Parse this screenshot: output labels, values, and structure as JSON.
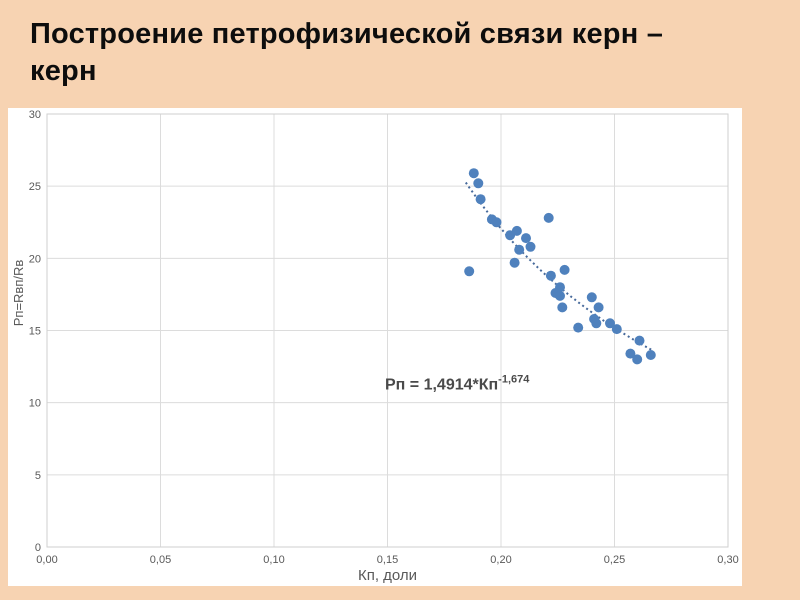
{
  "slide": {
    "background_color": "#f7d3b2",
    "title_lines": [
      "Построение петрофизической связи керн –",
      "керн"
    ]
  },
  "chart_data": {
    "type": "scatter",
    "title": "",
    "xlabel": "Кп, доли",
    "ylabel": "Рп=Rвп/Rв",
    "xlim": [
      0,
      0.3
    ],
    "ylim": [
      0,
      30
    ],
    "grid": true,
    "x_ticks": [
      "0,00",
      "0,05",
      "0,10",
      "0,15",
      "0,20",
      "0,25",
      "0,30"
    ],
    "x_tick_values": [
      0,
      0.05,
      0.1,
      0.15,
      0.2,
      0.25,
      0.3
    ],
    "y_ticks": [
      "0",
      "5",
      "10",
      "15",
      "20",
      "25",
      "30"
    ],
    "y_tick_values": [
      0,
      5,
      10,
      15,
      20,
      25,
      30
    ],
    "point_color": "#4f81bd",
    "trend_color": "#46699b",
    "grid_color": "#dcdcdc",
    "axis_text_color": "#595959",
    "equation_color": "#4a4a4a",
    "points": [
      [
        0.188,
        25.9
      ],
      [
        0.19,
        25.2
      ],
      [
        0.191,
        24.1
      ],
      [
        0.196,
        22.7
      ],
      [
        0.198,
        22.5
      ],
      [
        0.221,
        22.8
      ],
      [
        0.204,
        21.6
      ],
      [
        0.207,
        21.9
      ],
      [
        0.211,
        21.4
      ],
      [
        0.213,
        20.8
      ],
      [
        0.208,
        20.6
      ],
      [
        0.206,
        19.7
      ],
      [
        0.186,
        19.1
      ],
      [
        0.222,
        18.8
      ],
      [
        0.228,
        19.2
      ],
      [
        0.226,
        18.0
      ],
      [
        0.224,
        17.6
      ],
      [
        0.226,
        17.4
      ],
      [
        0.227,
        16.6
      ],
      [
        0.24,
        17.3
      ],
      [
        0.243,
        16.6
      ],
      [
        0.241,
        15.8
      ],
      [
        0.242,
        15.5
      ],
      [
        0.234,
        15.2
      ],
      [
        0.248,
        15.5
      ],
      [
        0.251,
        15.1
      ],
      [
        0.261,
        14.3
      ],
      [
        0.257,
        13.4
      ],
      [
        0.26,
        13.0
      ],
      [
        0.266,
        13.3
      ]
    ],
    "trendline": {
      "type": "power",
      "a": 1.4914,
      "b": -1.674,
      "x_start": 0.1845,
      "x_end": 0.267
    },
    "equation": {
      "base": "Рп = 1,4914*Кп",
      "exponent": "-1,674",
      "anchor_x": 0.1489,
      "anchor_y": 10.9
    }
  }
}
